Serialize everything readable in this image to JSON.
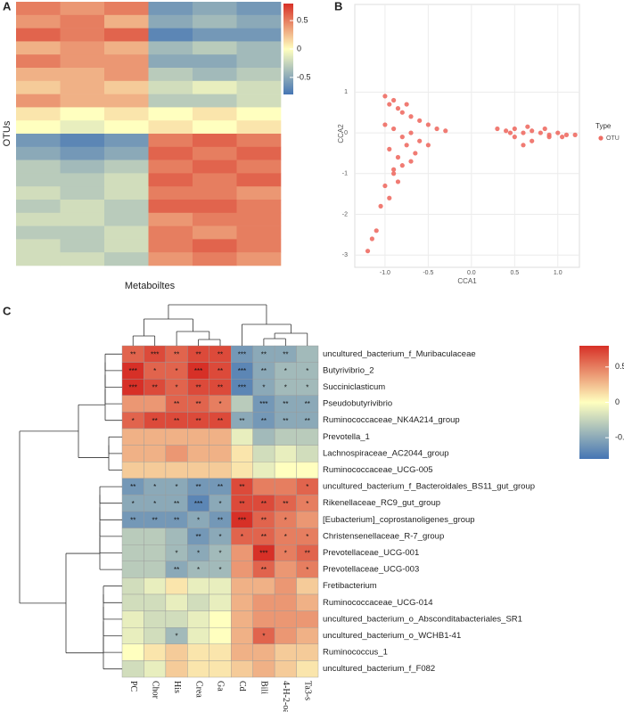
{
  "chart_data": [
    {
      "type": "heatmap",
      "panel": "A",
      "ylabel": "OTUs",
      "xlabel": "Metaboiltes",
      "colors": [
        "#4575b4",
        "#ffffbf",
        "#d73027"
      ],
      "zlim": [
        -0.8,
        0.8
      ],
      "colorbar_ticks": [
        0.5,
        0,
        -0.5
      ],
      "values": [
        [
          0.5,
          0.4,
          0.5,
          -0.6,
          -0.5,
          -0.6
        ],
        [
          0.4,
          0.5,
          0.3,
          -0.5,
          -0.4,
          -0.5
        ],
        [
          0.6,
          0.5,
          0.6,
          -0.7,
          -0.6,
          -0.6
        ],
        [
          0.3,
          0.4,
          0.3,
          -0.4,
          -0.3,
          -0.4
        ],
        [
          0.5,
          0.4,
          0.4,
          -0.5,
          -0.5,
          -0.4
        ],
        [
          0.3,
          0.3,
          0.4,
          -0.3,
          -0.4,
          -0.3
        ],
        [
          0.2,
          0.3,
          0.2,
          -0.2,
          -0.1,
          -0.2
        ],
        [
          0.4,
          0.3,
          0.3,
          -0.3,
          -0.3,
          -0.2
        ],
        [
          0.1,
          0,
          0.1,
          0,
          0.1,
          0
        ],
        [
          0,
          -0.1,
          0,
          0.1,
          0,
          0.1
        ],
        [
          -0.6,
          -0.7,
          -0.6,
          0.5,
          0.6,
          0.5
        ],
        [
          -0.5,
          -0.6,
          -0.5,
          0.6,
          0.5,
          0.6
        ],
        [
          -0.3,
          -0.4,
          -0.3,
          0.5,
          0.6,
          0.5
        ],
        [
          -0.3,
          -0.3,
          -0.2,
          0.6,
          0.5,
          0.6
        ],
        [
          -0.2,
          -0.3,
          -0.2,
          0.5,
          0.5,
          0.4
        ],
        [
          -0.3,
          -0.2,
          -0.3,
          0.6,
          0.6,
          0.5
        ],
        [
          -0.2,
          -0.2,
          -0.3,
          0.4,
          0.5,
          0.5
        ],
        [
          -0.3,
          -0.3,
          -0.2,
          0.5,
          0.4,
          0.5
        ],
        [
          -0.2,
          -0.3,
          -0.2,
          0.5,
          0.6,
          0.5
        ],
        [
          -0.2,
          -0.2,
          -0.3,
          0.4,
          0.5,
          0.4
        ]
      ]
    },
    {
      "type": "scatter",
      "panel": "B",
      "xlabel": "CCA1",
      "ylabel": "CCA2",
      "legend_title": "Type",
      "legend": "right",
      "grid": true,
      "xlim": [
        -1.35,
        1.25
      ],
      "ylim": [
        -3.3,
        3.15
      ],
      "xticks": [
        {
          "value": -1,
          "label": "-1.0"
        },
        -0.5,
        {
          "value": 0,
          "label": "0.0"
        },
        0.5,
        {
          "value": 1,
          "label": "1.0"
        }
      ],
      "yticks": [
        1,
        0,
        -1,
        -2,
        -3
      ],
      "series": [
        {
          "name": "OTU",
          "color": "#ee6d64",
          "x": [
            -1.0,
            -0.95,
            -0.9,
            -0.85,
            -0.8,
            -0.75,
            -0.7,
            -0.6,
            -0.5,
            -0.4,
            -0.3,
            -1.0,
            -0.9,
            -0.8,
            -0.7,
            -0.6,
            -0.95,
            -0.85,
            -0.75,
            -0.65,
            -0.9,
            -0.8,
            -1.0,
            -0.95,
            -0.9,
            -1.05,
            -1.1,
            -1.15,
            -1.2,
            -0.85,
            -0.7,
            -0.5,
            0.3,
            0.4,
            0.5,
            0.6,
            0.7,
            0.8,
            0.9,
            1.0,
            1.1,
            1.2,
            0.5,
            0.7,
            0.9,
            1.05,
            0.45,
            0.65,
            0.85,
            0.6
          ],
          "y": [
            0.9,
            0.7,
            0.8,
            0.6,
            0.5,
            0.7,
            0.4,
            0.3,
            0.2,
            0.1,
            0.05,
            0.2,
            0.1,
            -0.1,
            0,
            -0.2,
            -0.4,
            -0.6,
            -0.3,
            -0.5,
            -1.0,
            -0.8,
            -1.3,
            -1.6,
            -0.9,
            -1.8,
            -2.4,
            -2.6,
            -2.9,
            -1.2,
            -0.7,
            -0.3,
            0.1,
            0.05,
            0.1,
            0.0,
            0.05,
            0.0,
            -0.05,
            0.0,
            -0.05,
            -0.05,
            -0.1,
            -0.2,
            -0.1,
            -0.1,
            0.0,
            0.15,
            0.1,
            -0.3
          ]
        }
      ]
    },
    {
      "type": "heatmap",
      "panel": "C",
      "colors": [
        "#4575b4",
        "#ffffbf",
        "#d73027"
      ],
      "zlim": [
        -0.8,
        0.8
      ],
      "colorbar_ticks": [
        0.5,
        0,
        -0.5
      ],
      "columns": [
        "PC",
        "Chor",
        "His",
        "Crea",
        "Ga",
        "Cd",
        "Bili",
        "4-H-2-oa",
        "Ta3-s"
      ],
      "rows": [
        "uncultured_bacterium_f_Muribaculaceae",
        "Butyrivibrio_2",
        "Succiniclasticum",
        "Pseudobutyrivibrio",
        "Ruminococcaceae_NK4A214_group",
        "Prevotella_1",
        "Lachnospiraceae_AC2044_group",
        "Ruminococcaceae_UCG-005",
        "uncultured_bacterium_f_Bacteroidales_BS11_gut_group",
        "Rikenellaceae_RC9_gut_group",
        "[Eubacterium]_coprostanoligenes_group",
        "Christensenellaceae_R-7_group",
        "Prevotellaceae_UCG-001",
        "Prevotellaceae_UCG-003",
        "Fretibacterium",
        "Ruminococcaceae_UCG-014",
        "uncultured_bacterium_o_Absconditabacteriales_SR1",
        "uncultured_bacterium_o_WCHB1-41",
        "Ruminococcus_1",
        "uncultured_bacterium_f_F082"
      ],
      "values": [
        [
          0.6,
          0.7,
          0.6,
          0.7,
          0.7,
          -0.6,
          -0.5,
          -0.5,
          -0.4
        ],
        [
          0.8,
          0.6,
          0.6,
          0.8,
          0.7,
          -0.7,
          -0.5,
          -0.4,
          -0.4
        ],
        [
          0.8,
          0.7,
          0.6,
          0.7,
          0.7,
          -0.7,
          -0.5,
          -0.4,
          -0.4
        ],
        [
          0.4,
          0.4,
          0.6,
          0.6,
          0.5,
          -0.3,
          -0.6,
          -0.5,
          -0.5
        ],
        [
          0.6,
          0.7,
          0.7,
          0.7,
          0.7,
          -0.5,
          -0.6,
          -0.5,
          -0.5
        ],
        [
          0.3,
          0.3,
          0.3,
          0.3,
          0.3,
          -0.1,
          -0.4,
          -0.3,
          -0.3
        ],
        [
          0.3,
          0.3,
          0.4,
          0.3,
          0.3,
          0.1,
          -0.2,
          -0.1,
          -0.2
        ],
        [
          0.2,
          0.2,
          0.2,
          0.2,
          0.2,
          0.1,
          -0.1,
          0,
          0
        ],
        [
          -0.6,
          -0.5,
          -0.5,
          -0.6,
          -0.6,
          0.7,
          0.5,
          0.5,
          0.6
        ],
        [
          -0.5,
          -0.5,
          -0.5,
          -0.7,
          -0.5,
          0.7,
          0.7,
          0.6,
          0.5
        ],
        [
          -0.6,
          -0.6,
          -0.6,
          -0.5,
          -0.6,
          0.8,
          0.6,
          0.5,
          0.4
        ],
        [
          -0.3,
          -0.3,
          -0.4,
          -0.6,
          -0.5,
          0.6,
          0.6,
          0.5,
          0.5
        ],
        [
          -0.3,
          -0.3,
          -0.4,
          -0.5,
          -0.4,
          0.4,
          0.8,
          0.5,
          0.6
        ],
        [
          -0.3,
          -0.3,
          -0.5,
          -0.4,
          -0.4,
          0.4,
          0.6,
          0.4,
          0.5
        ],
        [
          -0.2,
          -0.1,
          0.1,
          -0.1,
          -0.1,
          0.3,
          0.3,
          0.4,
          0.2
        ],
        [
          -0.2,
          -0.2,
          -0.1,
          -0.2,
          -0.1,
          0.3,
          0.4,
          0.4,
          0.3
        ],
        [
          -0.1,
          -0.2,
          -0.2,
          -0.1,
          0,
          0.3,
          0.4,
          0.4,
          0.4
        ],
        [
          -0.1,
          -0.2,
          -0.4,
          -0.1,
          0,
          0.3,
          0.6,
          0.4,
          0.3
        ],
        [
          0,
          0.1,
          0.2,
          0.1,
          0.1,
          0.3,
          0.3,
          0.2,
          0.2
        ],
        [
          -0.2,
          -0.1,
          0.2,
          0.1,
          0.1,
          0.2,
          0.3,
          0.2,
          0.1
        ]
      ],
      "stars": [
        [
          "**",
          "***",
          "**",
          "**",
          "**",
          "***",
          "**",
          "**",
          null
        ],
        [
          "***",
          "*",
          "*",
          "***",
          "**",
          "***",
          "**",
          "*",
          "*"
        ],
        [
          "***",
          "**",
          "*",
          "**",
          "**",
          "***",
          "*",
          "*",
          "*"
        ],
        [
          null,
          null,
          "**",
          "**",
          "*",
          null,
          "***",
          "**",
          "**"
        ],
        [
          "*",
          "**",
          "**",
          "**",
          "**",
          "**",
          "**",
          "**",
          "**"
        ],
        [
          null,
          null,
          null,
          null,
          null,
          null,
          null,
          null,
          null
        ],
        [
          null,
          null,
          null,
          null,
          null,
          null,
          null,
          null,
          null
        ],
        [
          null,
          null,
          null,
          null,
          null,
          null,
          null,
          null,
          null
        ],
        [
          "**",
          "*",
          "*",
          "**",
          "**",
          "**",
          null,
          null,
          "*"
        ],
        [
          "*",
          "*",
          "**",
          "***",
          "*",
          "**",
          "**",
          "**",
          "*"
        ],
        [
          "**",
          "**",
          "**",
          "*",
          "**",
          "***",
          "**",
          "*",
          null
        ],
        [
          null,
          null,
          null,
          "**",
          "*",
          "*",
          "**",
          "*",
          "*"
        ],
        [
          null,
          null,
          "*",
          "*",
          "*",
          null,
          "***",
          "*",
          "**"
        ],
        [
          null,
          null,
          "**",
          "*",
          "*",
          null,
          "**",
          null,
          "*"
        ],
        [
          null,
          null,
          null,
          null,
          null,
          null,
          null,
          null,
          null
        ],
        [
          null,
          null,
          null,
          null,
          null,
          null,
          null,
          null,
          null
        ],
        [
          null,
          null,
          null,
          null,
          null,
          null,
          null,
          null,
          null
        ],
        [
          null,
          null,
          "*",
          null,
          null,
          null,
          "*",
          null,
          null
        ],
        [
          null,
          null,
          null,
          null,
          null,
          null,
          null,
          null,
          null
        ],
        [
          null,
          null,
          null,
          null,
          null,
          null,
          null,
          null,
          null
        ]
      ]
    }
  ]
}
